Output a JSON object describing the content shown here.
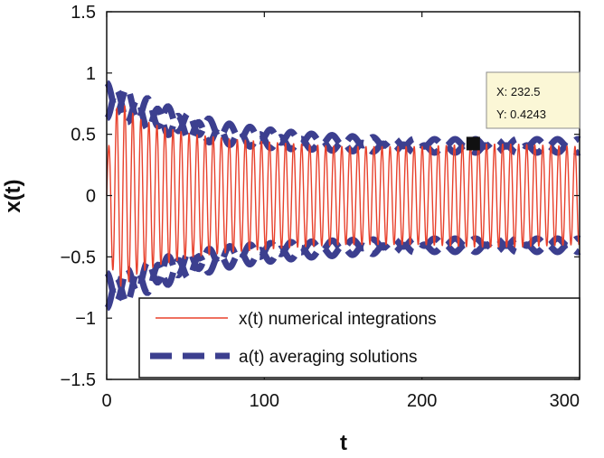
{
  "chart_data": {
    "type": "line",
    "title": "",
    "xlabel": "t",
    "ylabel": "x(t)",
    "xlim": [
      0,
      300
    ],
    "ylim": [
      -1.5,
      1.5
    ],
    "xticks": [
      0,
      100,
      200,
      300
    ],
    "xtick_labels": [
      "0",
      "100",
      "200",
      "300"
    ],
    "yticks": [
      1.5,
      1,
      0.5,
      0,
      -0.5,
      -1,
      -1.5
    ],
    "ytick_labels": [
      "1.5",
      "1",
      "0.5",
      "0",
      "−0.5",
      "−1",
      "−1.5"
    ],
    "grid": false,
    "legend_position": "bottom-right",
    "series": [
      {
        "name": "x(t) numerical integrations",
        "style": "solid",
        "color": "#e8412c",
        "period": 5.1,
        "envelope": {
          "t": [
            0,
            5,
            10,
            20,
            35,
            55,
            80,
            110,
            150,
            200,
            232.5,
            260,
            300
          ],
          "amplitude": [
            0.3,
            0.7,
            0.75,
            0.63,
            0.56,
            0.5,
            0.46,
            0.43,
            0.4,
            0.4,
            0.42,
            0.42,
            0.4
          ]
        }
      },
      {
        "name": "a(t) averaging solutions",
        "style": "dashed",
        "color": "#3c3f8f",
        "period": 13,
        "envelope": {
          "t": [
            0,
            5,
            10,
            20,
            35,
            55,
            80,
            110,
            150,
            200,
            232.5,
            260,
            300
          ],
          "amplitude": [
            0.8,
            0.8,
            0.78,
            0.72,
            0.65,
            0.58,
            0.52,
            0.48,
            0.45,
            0.43,
            0.43,
            0.43,
            0.43
          ]
        },
        "ripple": {
          "t": [
            0,
            15,
            40,
            80,
            130,
            200,
            300
          ],
          "amplitude": [
            0.12,
            0.11,
            0.09,
            0.06,
            0.04,
            0.03,
            0.03
          ]
        }
      }
    ],
    "datatip": {
      "x": 232.5,
      "y": 0.4243,
      "x_text": "X: 232.5",
      "y_text": "Y: 0.4243"
    }
  }
}
